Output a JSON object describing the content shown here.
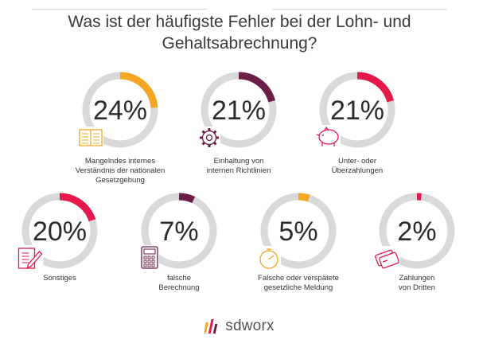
{
  "chart_data": {
    "type": "donut",
    "title": "Was ist der häufigste Fehler bei der Lohn- und Gehaltsabrechnung?",
    "title_lines": [
      "Was ist der häufigste Fehler bei der Lohn- und",
      "Gehaltsabrechnung?"
    ],
    "unit": "%",
    "items": [
      {
        "value": 24,
        "label_lines": [
          "Mangelndes internes",
          "Verständnis der nationalen",
          "Gesetzgebung"
        ],
        "color": "#f5a623",
        "icon": "book-icon"
      },
      {
        "value": 21,
        "label_lines": [
          "Einhaltung von",
          "internen Richtlinien"
        ],
        "color": "#6b1e4a",
        "icon": "gear-icon"
      },
      {
        "value": 21,
        "label_lines": [
          "Unter- oder",
          "Überzahlungen"
        ],
        "color": "#e6194b",
        "icon": "piggy-bank-icon"
      },
      {
        "value": 20,
        "label_lines": [
          "Sonstiges"
        ],
        "color": "#e6194b",
        "icon": "document-pen-icon"
      },
      {
        "value": 7,
        "label_lines": [
          "falsche",
          "Berechnung"
        ],
        "color": "#6b1e4a",
        "icon": "calculator-icon"
      },
      {
        "value": 5,
        "label_lines": [
          "Falsche oder verspätete",
          "gesetzliche Meldung"
        ],
        "color": "#f5a623",
        "icon": "stopwatch-icon"
      },
      {
        "value": 2,
        "label_lines": [
          "Zahlungen",
          "von Dritten"
        ],
        "color": "#e6194b",
        "icon": "credit-card-icon"
      }
    ],
    "track_color": "#d9d9d9"
  },
  "brand": {
    "name": "sdworx",
    "colors": [
      "#f5a623",
      "#e6194b",
      "#6b1e4a"
    ]
  }
}
